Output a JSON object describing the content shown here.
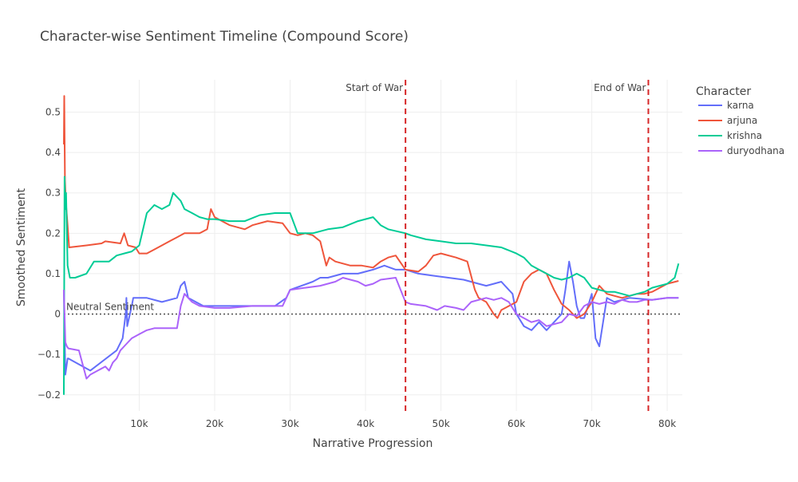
{
  "chart_data": {
    "type": "line",
    "title": "Character-wise Sentiment Timeline (Compound Score)",
    "xlabel": "Narrative Progression",
    "ylabel": "Smoothed Sentiment",
    "xlim": [
      0,
      82000
    ],
    "ylim": [
      -0.24,
      0.58
    ],
    "x_ticks": [
      10000,
      20000,
      30000,
      40000,
      50000,
      60000,
      70000,
      80000
    ],
    "x_tick_labels": [
      "10k",
      "20k",
      "30k",
      "40k",
      "50k",
      "60k",
      "70k",
      "80k"
    ],
    "y_ticks": [
      -0.2,
      -0.1,
      0,
      0.1,
      0.2,
      0.3,
      0.4,
      0.5
    ],
    "y_tick_labels": [
      "−0.2",
      "−0.1",
      "0",
      "0.1",
      "0.2",
      "0.3",
      "0.4",
      "0.5"
    ],
    "grid": true,
    "legend": {
      "title": "Character",
      "placement": "top-right"
    },
    "annotations": [
      {
        "text": "Start of War",
        "x": 45300,
        "kind": "vline",
        "color": "#d62728"
      },
      {
        "text": "End of War",
        "x": 77500,
        "kind": "vline",
        "color": "#d62728"
      },
      {
        "text": "Neutral Sentiment",
        "y": 0,
        "kind": "hline",
        "color": "#555555"
      }
    ],
    "series": [
      {
        "name": "karna",
        "color": "#636efa",
        "x": [
          0,
          200,
          500,
          600,
          3500,
          7000,
          7800,
          8200,
          8300,
          8400,
          9000,
          9200,
          10500,
          11000,
          13000,
          15000,
          15500,
          16000,
          16500,
          17500,
          18500,
          20000,
          22000,
          25000,
          28000,
          29500,
          30000,
          33000,
          34000,
          35000,
          37000,
          39000,
          41000,
          42500,
          44000,
          45300,
          47000,
          49000,
          51000,
          53000,
          55000,
          56000,
          57000,
          58000,
          59000,
          59500,
          60000,
          61000,
          62000,
          63000,
          64000,
          65000,
          66000,
          66500,
          67000,
          67500,
          68000,
          68500,
          69000,
          69500,
          70000,
          70500,
          71000,
          72000,
          73000,
          75000,
          78000,
          80000,
          81500
        ],
        "y": [
          0.06,
          -0.15,
          -0.11,
          -0.11,
          -0.14,
          -0.09,
          -0.06,
          0.0,
          0.04,
          -0.03,
          0.02,
          0.04,
          0.04,
          0.04,
          0.03,
          0.04,
          0.07,
          0.08,
          0.04,
          0.03,
          0.02,
          0.02,
          0.02,
          0.02,
          0.02,
          0.04,
          0.06,
          0.08,
          0.09,
          0.09,
          0.1,
          0.1,
          0.11,
          0.12,
          0.11,
          0.11,
          0.1,
          0.095,
          0.09,
          0.085,
          0.075,
          0.07,
          0.075,
          0.08,
          0.06,
          0.05,
          0.0,
          -0.03,
          -0.04,
          -0.02,
          -0.04,
          -0.02,
          0.0,
          0.06,
          0.13,
          0.08,
          0.02,
          -0.01,
          -0.01,
          0.02,
          0.05,
          -0.06,
          -0.08,
          0.04,
          0.03,
          0.04,
          0.035,
          0.04,
          0.04
        ]
      },
      {
        "name": "arjuna",
        "color": "#ef553b",
        "x": [
          0,
          50,
          150,
          300,
          500,
          700,
          3000,
          5000,
          5500,
          7500,
          8000,
          8500,
          9500,
          10000,
          11000,
          12000,
          13000,
          14000,
          15000,
          16000,
          17000,
          18000,
          19000,
          19500,
          20000,
          22000,
          24000,
          25000,
          27000,
          29000,
          30000,
          31000,
          32000,
          33000,
          34000,
          34800,
          35200,
          36000,
          38000,
          39500,
          41000,
          42000,
          43000,
          44000,
          45300,
          47000,
          48000,
          49000,
          50000,
          52000,
          53500,
          54500,
          55000,
          56000,
          57000,
          57500,
          58000,
          60000,
          61000,
          62000,
          63000,
          64000,
          65000,
          66000,
          67000,
          68000,
          69000,
          70000,
          71000,
          72000,
          74000,
          75000,
          76000,
          77000,
          78000,
          80000,
          81500
        ],
        "y": [
          0.42,
          0.54,
          0.33,
          0.27,
          0.22,
          0.165,
          0.17,
          0.175,
          0.18,
          0.175,
          0.2,
          0.17,
          0.165,
          0.15,
          0.15,
          0.16,
          0.17,
          0.18,
          0.19,
          0.2,
          0.2,
          0.2,
          0.21,
          0.26,
          0.24,
          0.22,
          0.21,
          0.22,
          0.23,
          0.225,
          0.2,
          0.195,
          0.2,
          0.195,
          0.18,
          0.12,
          0.14,
          0.13,
          0.12,
          0.12,
          0.115,
          0.13,
          0.14,
          0.145,
          0.11,
          0.105,
          0.12,
          0.145,
          0.15,
          0.14,
          0.13,
          0.06,
          0.04,
          0.03,
          0.0,
          -0.01,
          0.01,
          0.03,
          0.08,
          0.1,
          0.11,
          0.1,
          0.06,
          0.025,
          0.01,
          -0.01,
          0.0,
          0.03,
          0.07,
          0.05,
          0.04,
          0.045,
          0.05,
          0.05,
          0.055,
          0.075,
          0.082
        ]
      },
      {
        "name": "krishna",
        "color": "#00cc96",
        "x": [
          0,
          100,
          200,
          300,
          500,
          800,
          1500,
          3000,
          4000,
          5000,
          6000,
          7000,
          8000,
          9000,
          10000,
          11000,
          11500,
          12000,
          13000,
          14000,
          14500,
          15000,
          15500,
          16000,
          17000,
          18000,
          19000,
          20000,
          22000,
          24000,
          26000,
          28000,
          30000,
          31000,
          33000,
          35000,
          37000,
          39000,
          41000,
          42000,
          43000,
          45300,
          46000,
          48000,
          50000,
          52000,
          54000,
          56000,
          58000,
          60000,
          61000,
          62000,
          63000,
          64000,
          65000,
          66000,
          67000,
          68000,
          69000,
          70000,
          71000,
          72000,
          73000,
          74000,
          75000,
          76000,
          77000,
          78000,
          79000,
          80000,
          81000,
          81500
        ],
        "y": [
          -0.2,
          0.34,
          0.26,
          0.3,
          0.12,
          0.09,
          0.09,
          0.1,
          0.13,
          0.13,
          0.13,
          0.145,
          0.15,
          0.155,
          0.17,
          0.25,
          0.26,
          0.27,
          0.26,
          0.27,
          0.3,
          0.29,
          0.28,
          0.26,
          0.25,
          0.24,
          0.235,
          0.235,
          0.23,
          0.23,
          0.245,
          0.25,
          0.25,
          0.2,
          0.2,
          0.21,
          0.215,
          0.23,
          0.24,
          0.22,
          0.21,
          0.2,
          0.195,
          0.185,
          0.18,
          0.175,
          0.175,
          0.17,
          0.165,
          0.15,
          0.14,
          0.12,
          0.11,
          0.1,
          0.09,
          0.085,
          0.09,
          0.1,
          0.09,
          0.065,
          0.06,
          0.055,
          0.055,
          0.05,
          0.045,
          0.05,
          0.055,
          0.065,
          0.07,
          0.075,
          0.09,
          0.125
        ]
      },
      {
        "name": "duryodhana",
        "color": "#ab63fa",
        "x": [
          0,
          200,
          400,
          600,
          2000,
          3000,
          3500,
          4500,
          5500,
          6000,
          6500,
          7000,
          7500,
          8000,
          8500,
          9000,
          10000,
          11000,
          12000,
          13000,
          14000,
          15000,
          15500,
          16000,
          16500,
          17000,
          18000,
          20000,
          22000,
          25000,
          28000,
          29000,
          30000,
          32000,
          34000,
          36000,
          37000,
          38000,
          39000,
          40000,
          41000,
          42000,
          44000,
          45300,
          46000,
          48000,
          49500,
          50500,
          52000,
          53000,
          54000,
          55000,
          56000,
          57000,
          58000,
          59000,
          60000,
          61000,
          62000,
          63000,
          64000,
          65000,
          66000,
          67000,
          68000,
          69000,
          70000,
          71000,
          72000,
          73000,
          74000,
          75000,
          76000,
          77000,
          78000,
          80000,
          81500
        ],
        "y": [
          0.06,
          -0.07,
          -0.08,
          -0.085,
          -0.09,
          -0.16,
          -0.15,
          -0.14,
          -0.13,
          -0.14,
          -0.12,
          -0.11,
          -0.09,
          -0.08,
          -0.07,
          -0.06,
          -0.05,
          -0.04,
          -0.035,
          -0.035,
          -0.035,
          -0.035,
          0.02,
          0.05,
          0.04,
          0.03,
          0.02,
          0.015,
          0.015,
          0.02,
          0.02,
          0.02,
          0.06,
          0.065,
          0.07,
          0.08,
          0.09,
          0.085,
          0.08,
          0.07,
          0.075,
          0.085,
          0.09,
          0.03,
          0.025,
          0.02,
          0.01,
          0.02,
          0.015,
          0.01,
          0.03,
          0.035,
          0.04,
          0.035,
          0.04,
          0.03,
          0.0,
          -0.01,
          -0.02,
          -0.015,
          -0.03,
          -0.025,
          -0.02,
          0.0,
          -0.005,
          0.02,
          0.03,
          0.025,
          0.03,
          0.025,
          0.035,
          0.03,
          0.03,
          0.035,
          0.035,
          0.04,
          0.04
        ]
      }
    ]
  }
}
